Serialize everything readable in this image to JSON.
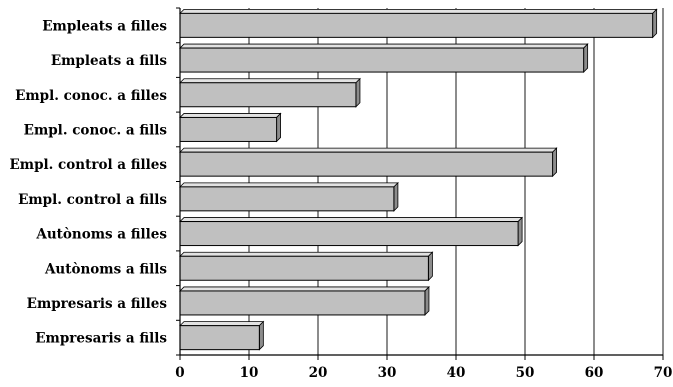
{
  "chart_data": {
    "type": "bar",
    "orientation": "horizontal",
    "title": "",
    "xlabel": "",
    "ylabel": "",
    "xlim": [
      0,
      70
    ],
    "xticks": [
      0,
      10,
      20,
      30,
      40,
      50,
      60,
      70
    ],
    "grid": "vertical",
    "legend": "none",
    "bar_color": "#c0c0c0",
    "categories": [
      "Empleats a filles",
      "Empleats a fills",
      "Empl. conoc. a filles",
      "Empl. conoc. a fills",
      "Empl. control a filles",
      "Empl. control a fills",
      "Autònoms a filles",
      "Autònoms a fills",
      "Empresaris a filles",
      "Empresaris a fills"
    ],
    "values": [
      68.5,
      58.5,
      25.5,
      14,
      54,
      31,
      49,
      36,
      35.5,
      11.5
    ]
  }
}
